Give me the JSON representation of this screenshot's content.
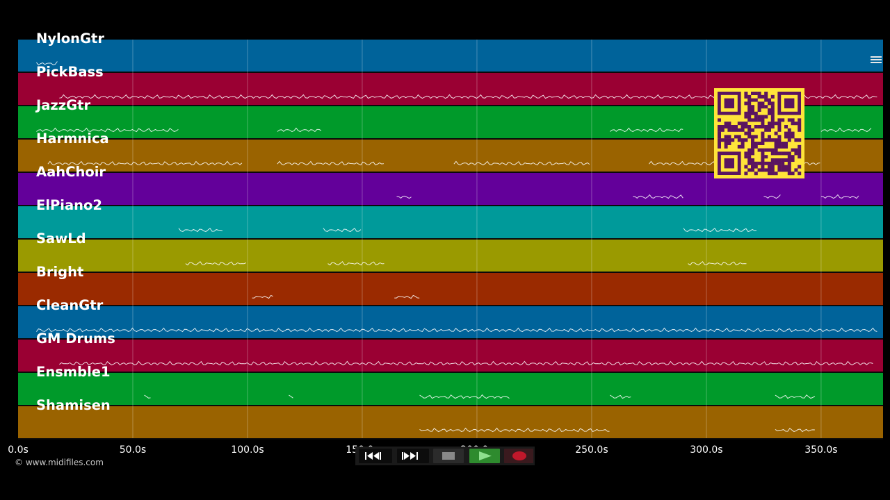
{
  "tracks": [
    {
      "name": "NylonGtr",
      "color": "#00639a"
    },
    {
      "name": "PickBass",
      "color": "#9a0033"
    },
    {
      "name": "JazzGtr",
      "color": "#009a2a"
    },
    {
      "name": "Harmnica",
      "color": "#9a6300"
    },
    {
      "name": "AahChoir",
      "color": "#63009a"
    },
    {
      "name": "ElPiano2",
      "color": "#009a9a"
    },
    {
      "name": "SawLd",
      "color": "#9a9a00"
    },
    {
      "name": "Bright",
      "color": "#9a2a00"
    },
    {
      "name": "CleanGtr",
      "color": "#00639a"
    },
    {
      "name": "GM Drums",
      "color": "#9a0033"
    },
    {
      "name": "Ensmble1",
      "color": "#009a2a"
    },
    {
      "name": "Shamisen",
      "color": "#9a6300"
    }
  ],
  "time_axis": {
    "labels": [
      "0.0s",
      "50.0s",
      "100.0s",
      "150.0s",
      "200.0s",
      "250.0s",
      "300.0s",
      "350.0s"
    ],
    "max_seconds": 377
  },
  "copyright": "© www.midifiles.com",
  "transport": {
    "buttons": [
      "rewind",
      "fast-forward",
      "stop",
      "play",
      "record"
    ],
    "colors": {
      "stop": "#888888",
      "play": "#2e8b2e",
      "record": "#c0182b"
    }
  },
  "icons": {
    "menu": "hamburger-menu-icon",
    "qr": "qr-code"
  }
}
